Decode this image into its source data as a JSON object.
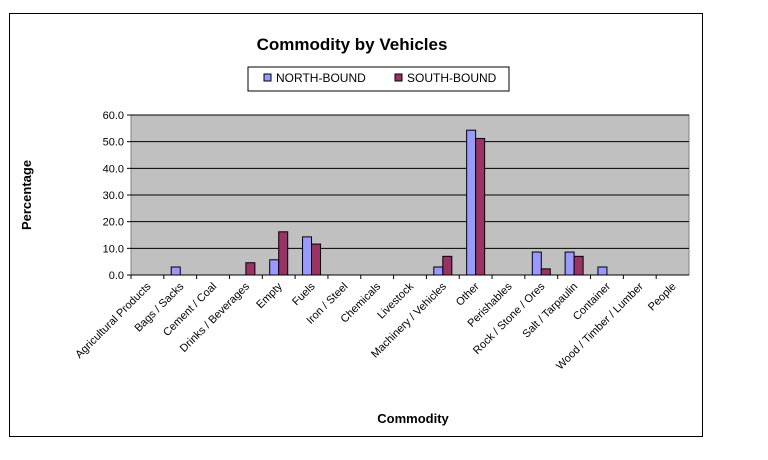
{
  "chart_data": {
    "type": "bar",
    "title": "Commodity by Vehicles",
    "xlabel": "Commodity",
    "ylabel": "Percentage",
    "ylim": [
      0,
      60
    ],
    "yticks": [
      "0.0",
      "10.0",
      "20.0",
      "30.0",
      "40.0",
      "50.0",
      "60.0"
    ],
    "grid": true,
    "legend_position": "top-center",
    "plot_background": "#c0c0c0",
    "categories": [
      "Agricultural Products",
      "Bags / Sacks",
      "Cement / Coal",
      "Drinks / Beverages",
      "Empty",
      "Fuels",
      "Iron / Steel",
      "Chemicals",
      "Livestock",
      "Machinery / Vehicles",
      "Other",
      "Perishables",
      "Rock / Stone / Ores",
      "Salt / Tarpaulin",
      "Container",
      "Wood / Timber / Lumber",
      "People"
    ],
    "series": [
      {
        "name": "NORTH-BOUND",
        "color": "#9999ff",
        "values": [
          0,
          3.0,
          0,
          0,
          5.7,
          14.3,
          0,
          0,
          0,
          3.0,
          54.3,
          0,
          8.6,
          8.6,
          3.0,
          0,
          0
        ]
      },
      {
        "name": "SOUTH-BOUND",
        "color": "#993366",
        "values": [
          0,
          0,
          0,
          4.6,
          16.2,
          11.6,
          0,
          0,
          0,
          7.0,
          51.2,
          0,
          2.3,
          7.0,
          0,
          0,
          0
        ]
      }
    ]
  }
}
